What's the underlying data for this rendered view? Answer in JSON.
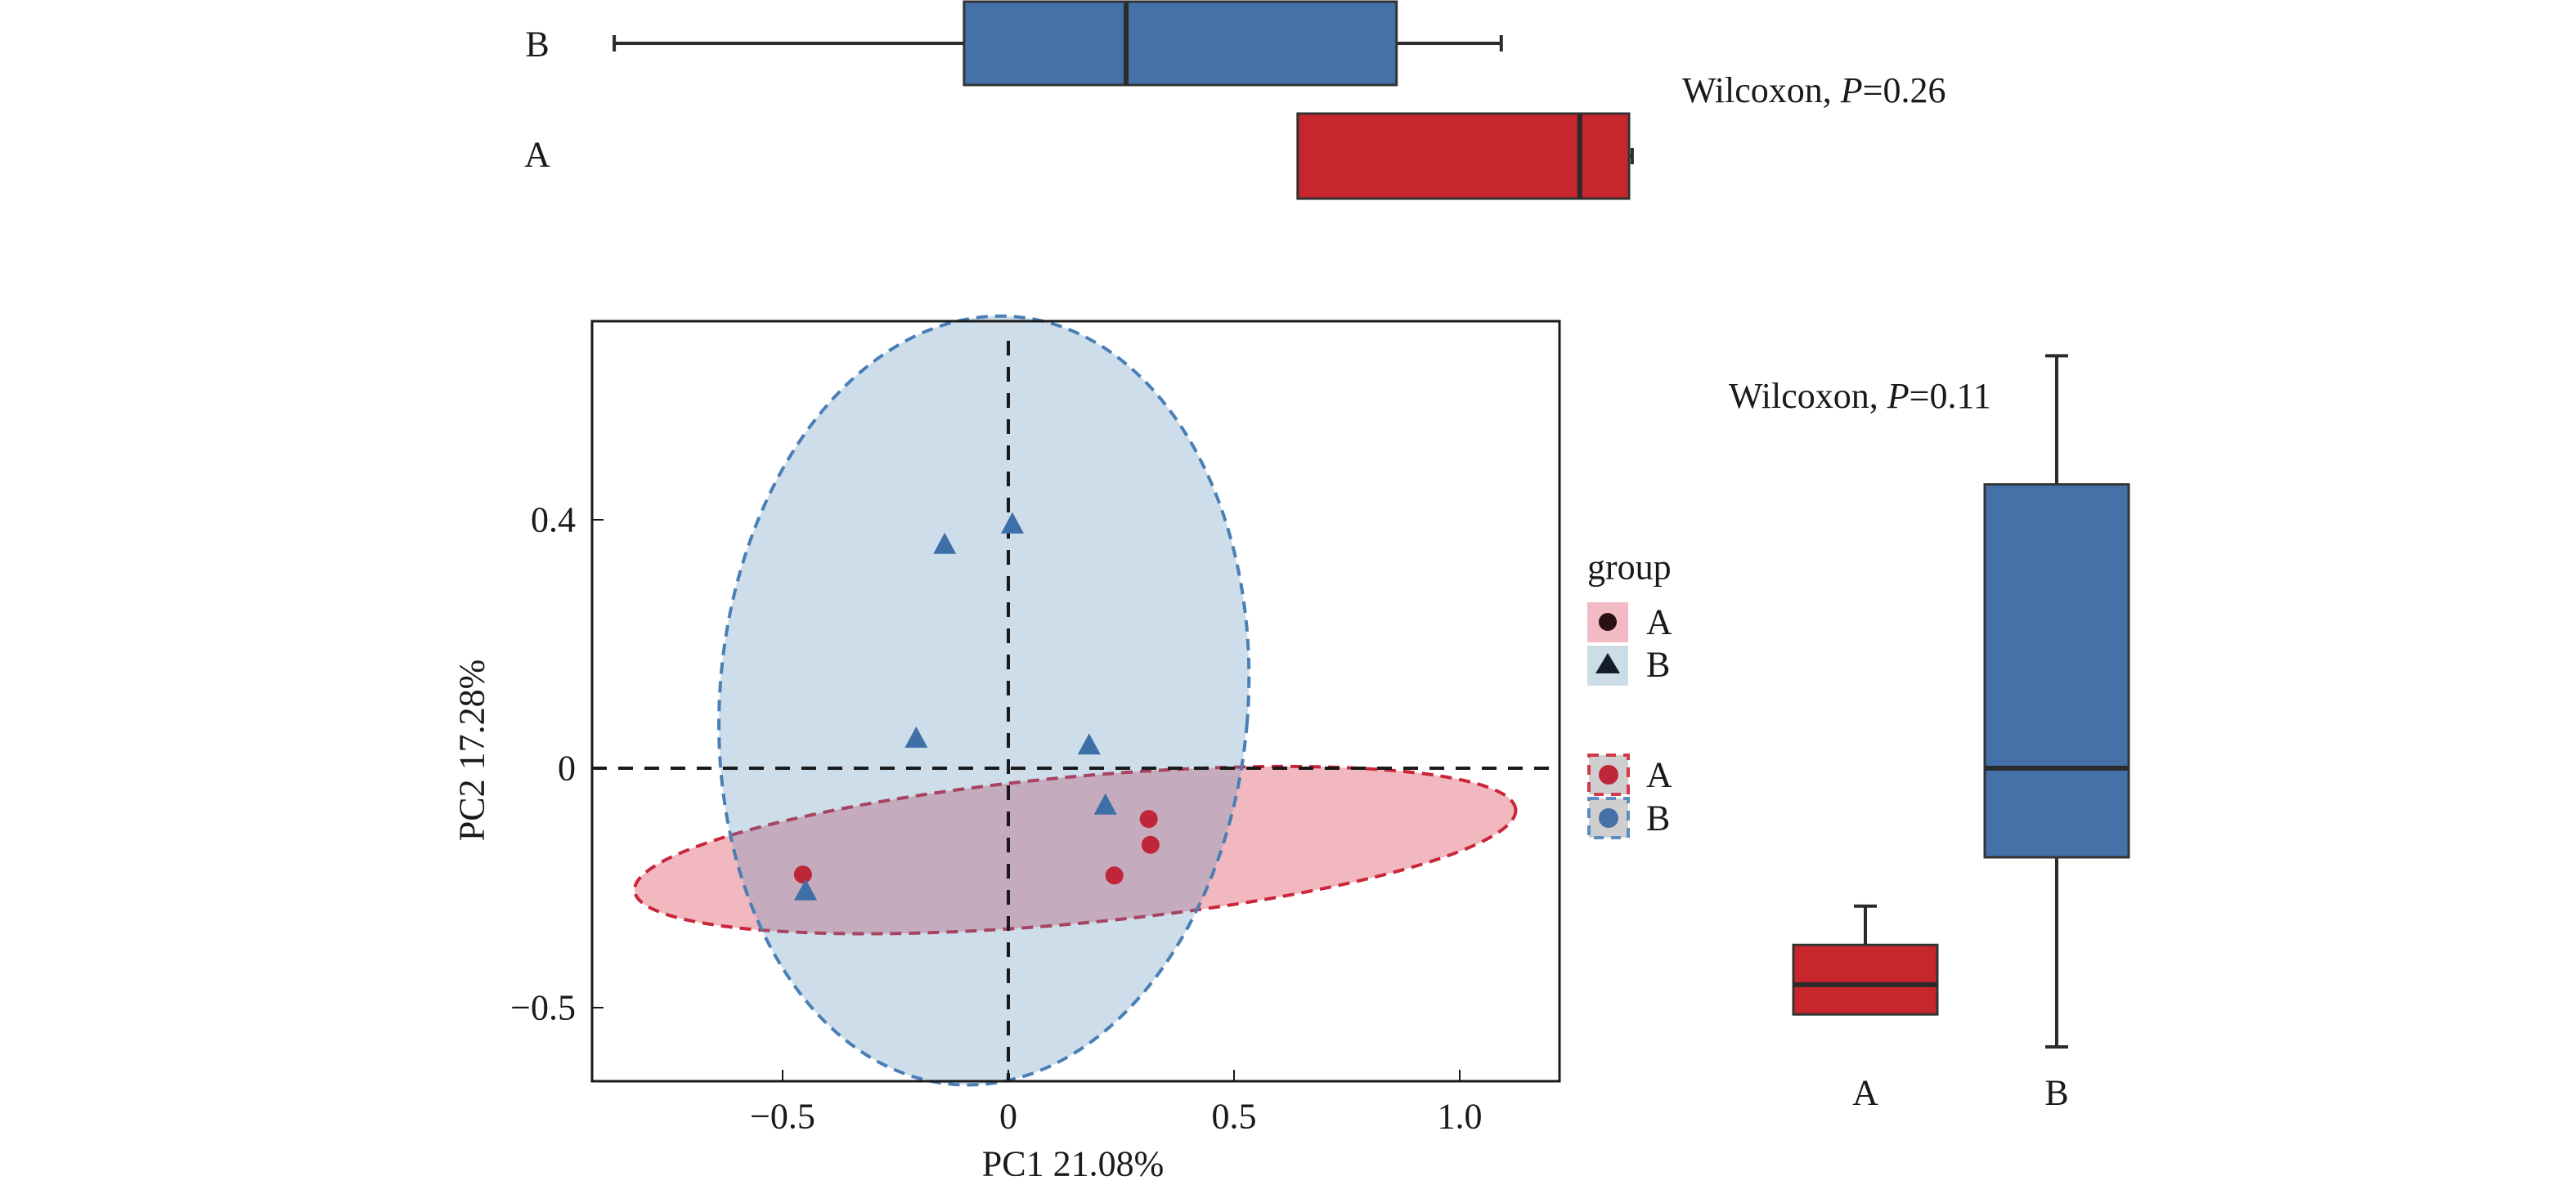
{
  "chart_data": [
    {
      "type": "scatter",
      "name": "PCA score plot",
      "title": "",
      "xlabel": "PC1 21.08%",
      "ylabel": "PC2 17.28%",
      "xlim": [
        -0.92,
        1.22
      ],
      "ylim": [
        -0.52,
        0.72
      ],
      "x_ticks": [
        -0.5,
        0,
        0.5,
        1.0
      ],
      "x_tick_labels": [
        "−0.5",
        "0",
        "0.5",
        "1.0"
      ],
      "y_ticks": [
        -0.5,
        0,
        0.4
      ],
      "y_tick_labels": [
        "−0.5",
        "0",
        "0.4"
      ],
      "grid": false,
      "reference_lines": {
        "x": 0,
        "y": 0,
        "style": "dashed"
      },
      "series": [
        {
          "name": "A",
          "marker": "circle",
          "color": "#c0263a",
          "points": [
            {
              "x": 0.311,
              "y": -0.106
            },
            {
              "x": 0.315,
              "y": -0.16
            },
            {
              "x": 0.235,
              "y": -0.224
            },
            {
              "x": -0.455,
              "y": -0.222
            }
          ],
          "ellipse": {
            "cx": 0.148,
            "cy": -0.171,
            "rx": 0.98,
            "ry": 0.118,
            "angle_deg": -5.3,
            "fill": "#d7263d",
            "fill_opacity": 0.33,
            "stroke": "#c9263a"
          }
        },
        {
          "name": "B",
          "marker": "triangle",
          "color": "#3f6fa8",
          "points": [
            {
              "x": -0.141,
              "y": 0.358
            },
            {
              "x": 0.009,
              "y": 0.391
            },
            {
              "x": -0.204,
              "y": 0.046
            },
            {
              "x": 0.179,
              "y": 0.035
            },
            {
              "x": 0.215,
              "y": -0.08
            },
            {
              "x": -0.449,
              "y": -0.259
            }
          ],
          "ellipse": {
            "cx": -0.054,
            "cy": 0.109,
            "rx": 0.585,
            "ry": 0.62,
            "angle_deg": 4.6,
            "fill": "#5b8db8",
            "fill_opacity": 0.3,
            "stroke": "#4a7fb5"
          }
        }
      ],
      "legend": {
        "position": "right",
        "title": "group",
        "shape_entries": [
          {
            "label": "A",
            "symbol": "circle",
            "key_fill": "#f2bac3"
          },
          {
            "label": "B",
            "symbol": "triangle",
            "key_fill": "#cddde8"
          }
        ],
        "ellipse_entries": [
          {
            "label": "A",
            "dot_color": "#c0263a",
            "border_color": "#d23a48"
          },
          {
            "label": "B",
            "dot_color": "#4472a8",
            "border_color": "#5b8dc0"
          }
        ]
      }
    },
    {
      "type": "boxplot",
      "name": "PC1 marginal boxplot",
      "orientation": "horizontal",
      "axis": "PC1",
      "annotation": {
        "prefix": "Wilcoxon, ",
        "p_symbol": "P",
        "p_value_text": "=0.26"
      },
      "groups": [
        {
          "label": "B",
          "color": "#4472a8",
          "min": -0.873,
          "q1": -0.098,
          "median": 0.261,
          "q3": 0.86,
          "max": 1.092
        },
        {
          "label": "A",
          "color": "#c8262d",
          "min": 0.641,
          "q1": 0.641,
          "median": 1.266,
          "q3": 1.375,
          "max": 1.382
        }
      ]
    },
    {
      "type": "boxplot",
      "name": "PC2 marginal boxplot",
      "orientation": "vertical",
      "axis": "PC2",
      "annotation": {
        "prefix": "Wilcoxon, ",
        "p_symbol": "P",
        "p_value_text": "=0.11"
      },
      "categories": [
        "A",
        "B"
      ],
      "groups": [
        {
          "label": "A",
          "color": "#c8262d",
          "min": -0.514,
          "q1": -0.514,
          "median": -0.452,
          "q3": -0.369,
          "max": -0.288
        },
        {
          "label": "B",
          "color": "#4472a8",
          "min": -0.582,
          "q1": -0.186,
          "median": 0.0,
          "q3": 0.457,
          "max": 0.664
        }
      ]
    }
  ]
}
